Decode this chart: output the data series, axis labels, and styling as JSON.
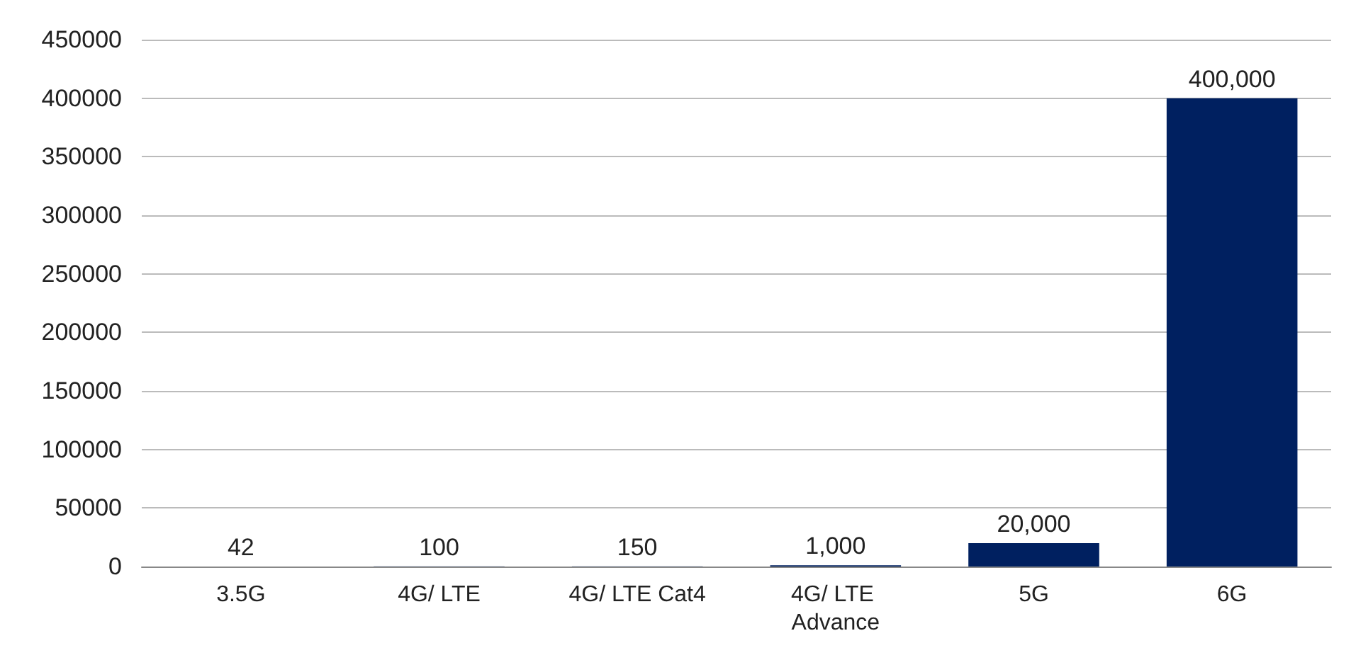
{
  "chart_data": {
    "type": "bar",
    "categories": [
      "3.5G",
      "4G/ LTE",
      "4G/ LTE Cat4",
      "4G/ LTE Advance",
      "5G",
      "6G"
    ],
    "values": [
      42,
      100,
      150,
      1000,
      20000,
      400000
    ],
    "value_labels": [
      "42",
      "100",
      "150",
      "1,000",
      "20,000",
      "400,000"
    ],
    "color": "#002060",
    "ylim": [
      0,
      450000
    ],
    "yticks": [
      0,
      50000,
      100000,
      150000,
      200000,
      250000,
      300000,
      350000,
      400000,
      450000
    ],
    "grid": "y"
  }
}
